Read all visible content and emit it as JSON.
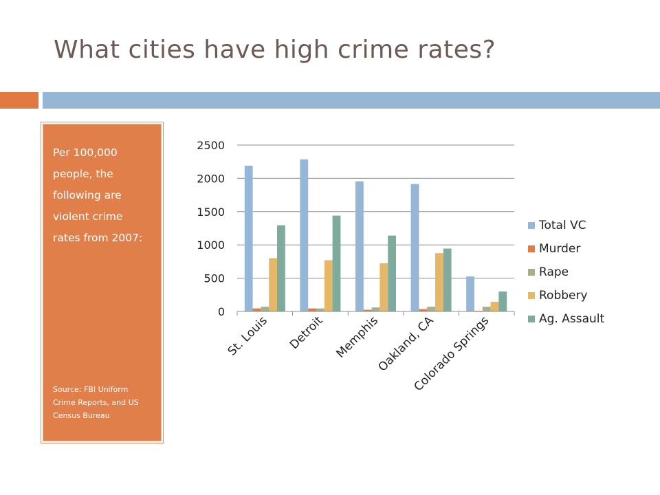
{
  "slide": {
    "title": "What cities have high crime rates?",
    "description": "Per 100,000 people, the following are violent crime rates from 2007:",
    "source": "Source: FBI Uniform Crime Reports, and US Census Bureau"
  },
  "colors": {
    "accent_orange": "#e07a40",
    "accent_blue": "#95b6d4",
    "textbox_fill": "#e07f4a",
    "title": "#6b5a55"
  },
  "chart_data": {
    "type": "bar",
    "categories": [
      "St. Louis",
      "Detroit",
      "Memphis",
      "Oakland, CA",
      "Colorado Springs"
    ],
    "series": [
      {
        "name": "Total VC",
        "color": "#95b6d6",
        "values": [
          2190,
          2285,
          1955,
          1915,
          525
        ]
      },
      {
        "name": "Murder",
        "color": "#e07b46",
        "values": [
          45,
          45,
          25,
          35,
          10
        ]
      },
      {
        "name": "Rape",
        "color": "#a6ae8a",
        "values": [
          70,
          45,
          60,
          70,
          70
        ]
      },
      {
        "name": "Robbery",
        "color": "#e4b769",
        "values": [
          800,
          770,
          725,
          875,
          145
        ]
      },
      {
        "name": "Ag. Assault",
        "color": "#7fab9e",
        "values": [
          1295,
          1440,
          1140,
          945,
          300
        ]
      }
    ],
    "ylim": [
      0,
      2500
    ],
    "yticks": [
      0,
      500,
      1000,
      1500,
      2000,
      2500
    ],
    "grid": true,
    "legend": "right",
    "xlabel": "",
    "ylabel": ""
  }
}
